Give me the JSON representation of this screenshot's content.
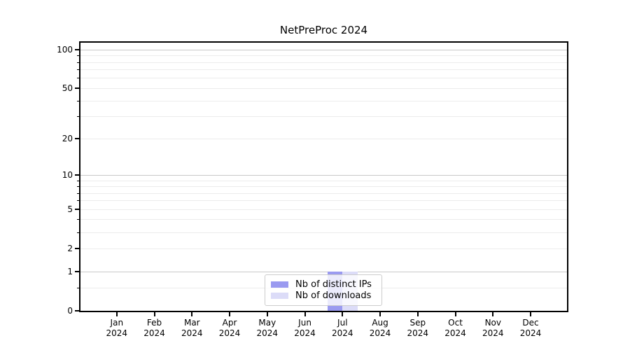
{
  "title": "NetPreProc 2024",
  "chart_data": {
    "type": "bar",
    "title": "NetPreProc 2024",
    "x_axis": {
      "months": [
        "Jan",
        "Feb",
        "Mar",
        "Apr",
        "May",
        "Jun",
        "Jul",
        "Aug",
        "Sep",
        "Oct",
        "Nov",
        "Dec"
      ],
      "year": "2024"
    },
    "y_axis": {
      "scale": "log1p",
      "tick_labels": [
        "100",
        "50",
        "20",
        "10",
        "5",
        "2",
        "1",
        "0"
      ],
      "tick_values": [
        100,
        50,
        20,
        10,
        5,
        2,
        1,
        0
      ],
      "decade_gridlines": [
        100,
        10,
        1
      ],
      "minor_gridlines": [
        0.5,
        3,
        4,
        6,
        7,
        8,
        9,
        30,
        40,
        60,
        70,
        80,
        90
      ],
      "range_bottom": 0,
      "range_top_approx": 115,
      "grid": "horizontal major+minor"
    },
    "series": [
      {
        "name": "Nb of distinct IPs",
        "color": "#9a9af0",
        "values": [
          0,
          0,
          0,
          0,
          0,
          0,
          1,
          0,
          0,
          0,
          0,
          0
        ]
      },
      {
        "name": "Nb of downloads",
        "color": "#dcdcf8",
        "values": [
          0,
          0,
          0,
          0,
          0,
          0,
          1,
          0,
          0,
          0,
          0,
          0
        ]
      }
    ],
    "legend": {
      "position": "bottom-center",
      "items": [
        {
          "label": "Nb of distinct IPs",
          "color": "#9a9af0"
        },
        {
          "label": "Nb of downloads",
          "color": "#dcdcf8"
        }
      ]
    },
    "colors": {
      "spine": "#000000",
      "grid_decade": "#c9c9c9",
      "grid_minor": "#ececec",
      "text": "#000000",
      "legend_border": "#cccccc",
      "background": "#ffffff"
    }
  }
}
